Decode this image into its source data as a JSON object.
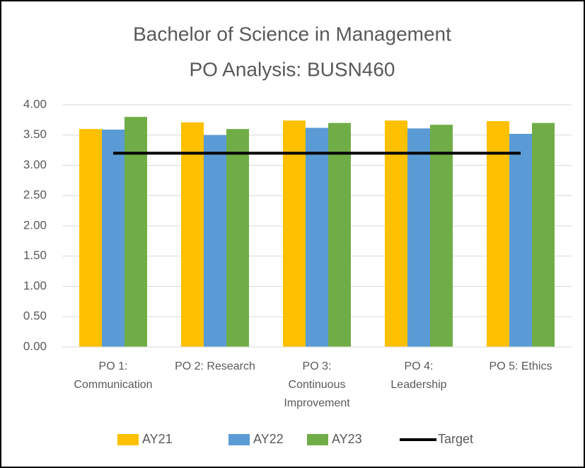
{
  "chart_data": {
    "type": "bar",
    "title": [
      "Bachelor of Science in Management",
      "PO Analysis: BUSN460"
    ],
    "categories": [
      [
        "PO 1:",
        "Communication"
      ],
      [
        "PO 2: Research"
      ],
      [
        "PO 3:",
        "Continuous",
        "Improvement"
      ],
      [
        "PO 4:",
        "Leadership"
      ],
      [
        "PO 5: Ethics"
      ]
    ],
    "series": [
      {
        "name": "AY21",
        "color": "#FFC000",
        "values": [
          3.6,
          3.71,
          3.74,
          3.74,
          3.73
        ]
      },
      {
        "name": "AY22",
        "color": "#5B9BD5",
        "values": [
          3.59,
          3.5,
          3.62,
          3.61,
          3.52
        ]
      },
      {
        "name": "AY23",
        "color": "#70AD47",
        "values": [
          3.8,
          3.6,
          3.7,
          3.67,
          3.7
        ]
      },
      {
        "name": "Target",
        "color": "#000000",
        "type": "line",
        "values": [
          3.2,
          3.2,
          3.2,
          3.2,
          3.2
        ]
      }
    ],
    "ylim": [
      0,
      4
    ],
    "yticks": [
      {
        "value": 0,
        "label": "0.00"
      },
      {
        "value": 0.5,
        "label": "0.50"
      },
      {
        "value": 1,
        "label": "1.00"
      },
      {
        "value": 1.5,
        "label": "1.50"
      },
      {
        "value": 2,
        "label": "2.00"
      },
      {
        "value": 2.5,
        "label": "2.50"
      },
      {
        "value": 3,
        "label": "3.00"
      },
      {
        "value": 3.5,
        "label": "3.50"
      },
      {
        "value": 4,
        "label": "4.00"
      }
    ],
    "grid": true,
    "legend": "bottom"
  }
}
